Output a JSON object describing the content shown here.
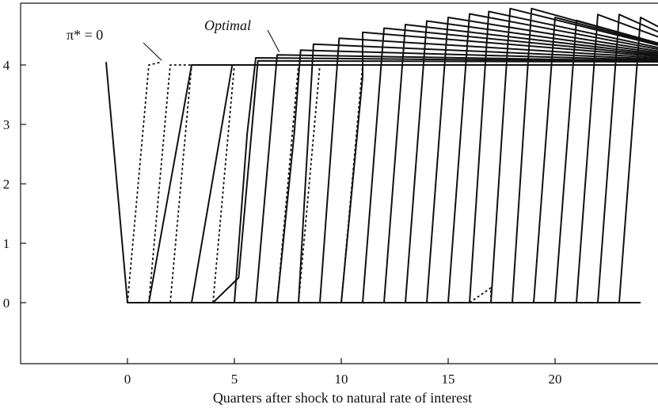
{
  "chart_data": {
    "type": "line",
    "title": "",
    "xlabel": "Quarters after shock to natural rate of interest",
    "ylabel": "",
    "xlim": [
      -5,
      25
    ],
    "ylim": [
      -1,
      5
    ],
    "x_ticks": [
      0,
      5,
      10,
      15,
      20
    ],
    "y_ticks": [
      0,
      1,
      2,
      3,
      4
    ],
    "x_tick_labels": [
      "0",
      "5",
      "10",
      "15",
      "20"
    ],
    "y_tick_labels": [
      "0",
      "1",
      "2",
      "3",
      "4"
    ],
    "grid": false,
    "annotations": [
      {
        "text": "π* = 0",
        "italic": false,
        "x": 1.6,
        "y": 4.05
      },
      {
        "text": "Optimal",
        "italic": true,
        "x": 7.1,
        "y": 4.22
      }
    ],
    "series": [
      {
        "style": "solid",
        "points": [
          [
            -1,
            4.05
          ],
          [
            0,
            0
          ],
          [
            0.2,
            0
          ]
        ]
      },
      {
        "style": "dotted",
        "points": [
          [
            0,
            0
          ],
          [
            1,
            4.0
          ],
          [
            1.6,
            4.05
          ]
        ]
      },
      {
        "style": "dotted",
        "points": [
          [
            1,
            0
          ],
          [
            2,
            4.0
          ],
          [
            3,
            4.0
          ]
        ]
      },
      {
        "style": "dotted",
        "points": [
          [
            2,
            0
          ],
          [
            3,
            4.0
          ],
          [
            4,
            4.0
          ]
        ]
      },
      {
        "style": "dotted",
        "points": [
          [
            4,
            0
          ],
          [
            5,
            4.0
          ],
          [
            6,
            4.0
          ]
        ]
      },
      {
        "style": "dotted",
        "points": [
          [
            7,
            0
          ],
          [
            8,
            4.0
          ],
          [
            9,
            4.0
          ]
        ]
      },
      {
        "style": "dotted",
        "points": [
          [
            8,
            0
          ],
          [
            9,
            4.0
          ],
          [
            10,
            4.0
          ]
        ]
      },
      {
        "style": "dotted",
        "points": [
          [
            10,
            0
          ],
          [
            11,
            4.0
          ],
          [
            12,
            4.0
          ]
        ]
      },
      {
        "style": "dotted",
        "points": [
          [
            16,
            0
          ],
          [
            17,
            0.25
          ],
          [
            17,
            0
          ]
        ]
      },
      {
        "style": "solid",
        "points": [
          [
            0,
            0
          ],
          [
            24,
            0
          ]
        ]
      },
      {
        "style": "solid",
        "points": [
          [
            1,
            0
          ],
          [
            3,
            4.0
          ],
          [
            28,
            4.0
          ]
        ]
      },
      {
        "style": "solid",
        "points": [
          [
            3,
            0
          ],
          [
            4.9,
            4.0
          ],
          [
            28,
            4.0
          ]
        ]
      },
      {
        "style": "solid",
        "points": [
          [
            4,
            0
          ],
          [
            5.2,
            0.42
          ],
          [
            6.1,
            4.07
          ],
          [
            28,
            4.05
          ]
        ]
      },
      {
        "style": "solid",
        "points": [
          [
            5,
            0
          ],
          [
            5.6,
            2.85
          ],
          [
            6.0,
            4.12
          ],
          [
            28,
            4.05
          ]
        ]
      },
      {
        "style": "solid",
        "points": [
          [
            6,
            0
          ],
          [
            7.0,
            4.17
          ],
          [
            28,
            4.05
          ]
        ]
      },
      {
        "style": "solid",
        "points": [
          [
            7,
            0
          ],
          [
            7.8,
            2.85
          ],
          [
            8.1,
            4.25
          ],
          [
            28,
            4.05
          ]
        ]
      },
      {
        "style": "solid",
        "points": [
          [
            8,
            0
          ],
          [
            8.7,
            4.35
          ],
          [
            28,
            4.05
          ]
        ]
      },
      {
        "style": "solid",
        "points": [
          [
            9,
            0
          ],
          [
            9.9,
            4.45
          ],
          [
            28,
            4.05
          ]
        ]
      },
      {
        "style": "solid",
        "points": [
          [
            10,
            0
          ],
          [
            11,
            3.8
          ],
          [
            11,
            4.55
          ],
          [
            28,
            4.05
          ]
        ]
      },
      {
        "style": "solid",
        "points": [
          [
            11,
            0
          ],
          [
            12,
            4.62
          ],
          [
            28,
            4.05
          ]
        ]
      },
      {
        "style": "solid",
        "points": [
          [
            12,
            0
          ],
          [
            13,
            4.68
          ],
          [
            28,
            4.05
          ]
        ]
      },
      {
        "style": "solid",
        "points": [
          [
            13,
            0
          ],
          [
            14,
            4.74
          ],
          [
            28,
            4.05
          ]
        ]
      },
      {
        "style": "solid",
        "points": [
          [
            14,
            0
          ],
          [
            15,
            4.8
          ],
          [
            28,
            4.05
          ]
        ]
      },
      {
        "style": "solid",
        "points": [
          [
            15,
            0
          ],
          [
            16,
            4.86
          ],
          [
            28,
            4.05
          ]
        ]
      },
      {
        "style": "solid",
        "points": [
          [
            16,
            0
          ],
          [
            16.9,
            4.9
          ],
          [
            28,
            4.05
          ]
        ]
      },
      {
        "style": "solid",
        "points": [
          [
            17,
            0
          ],
          [
            17.9,
            4.95
          ],
          [
            28,
            4.05
          ]
        ]
      },
      {
        "style": "solid",
        "points": [
          [
            18,
            0
          ],
          [
            18.9,
            4.95
          ],
          [
            28,
            4.05
          ]
        ]
      },
      {
        "style": "solid",
        "points": [
          [
            19,
            0
          ],
          [
            20,
            4.8
          ],
          [
            28,
            4.05
          ]
        ]
      },
      {
        "style": "solid",
        "points": [
          [
            20,
            0
          ],
          [
            21,
            4.75
          ],
          [
            28,
            4.05
          ]
        ]
      },
      {
        "style": "solid",
        "points": [
          [
            21,
            0
          ],
          [
            22,
            4.85
          ],
          [
            28,
            4.05
          ]
        ]
      },
      {
        "style": "solid",
        "points": [
          [
            22,
            0
          ],
          [
            23,
            4.85
          ],
          [
            28,
            4.05
          ]
        ]
      },
      {
        "style": "solid",
        "points": [
          [
            23,
            0
          ],
          [
            24,
            4.8
          ],
          [
            28,
            4.05
          ]
        ]
      }
    ]
  }
}
